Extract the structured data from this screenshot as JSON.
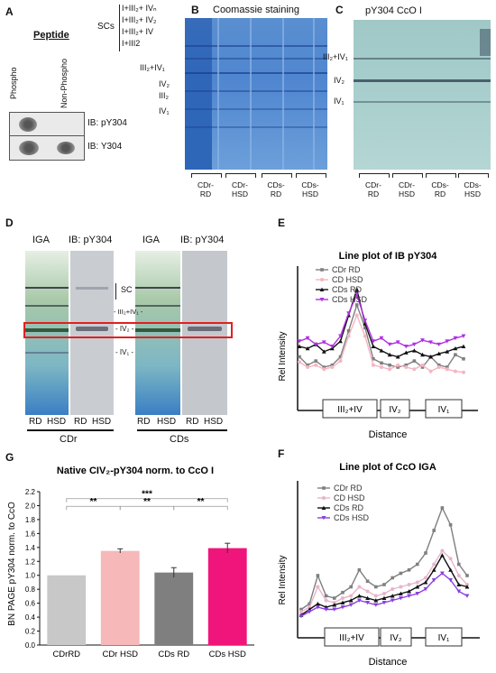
{
  "panels": {
    "a": {
      "letter": "A",
      "peptide_header": "Peptide",
      "col_labels": [
        "Phospho",
        "Non-Phospho"
      ],
      "blots": [
        "IB: pY304",
        "IB: Y304"
      ],
      "scs_label": "SCs",
      "complex_labels": [
        "I+III₂+ IVₙ",
        "I+III₂+ IV₂",
        "I+III₂+ IV",
        "I+III2"
      ]
    },
    "b": {
      "letter": "B",
      "title": "Coomassie staining",
      "band_labels": [
        "III₂+IV₁",
        "IV₂",
        "III₂",
        "IV₁"
      ],
      "lane_groups": [
        [
          "CDr-",
          "RD"
        ],
        [
          "CDr-",
          "HSD"
        ],
        [
          "CDs-",
          "RD"
        ],
        [
          "CDs-",
          "HSD"
        ]
      ]
    },
    "c": {
      "letter": "C",
      "title": "pY304 CcO I",
      "band_labels": [
        "III₂+IV₁",
        "IV₂",
        "IV₁"
      ],
      "lane_groups": [
        [
          "CDr-",
          "RD"
        ],
        [
          "CDr-",
          "HSD"
        ],
        [
          "CDs-",
          "RD"
        ],
        [
          "CDs-",
          "HSD"
        ]
      ]
    },
    "d": {
      "letter": "D",
      "headers": [
        "IGA",
        "IB: pY304",
        "IGA",
        "IB: pY304"
      ],
      "mid_labels": [
        "SC",
        "- III₂+IV₁ -",
        "- IV₂ -",
        "- IV₁ -"
      ],
      "lane_labels": [
        "RD",
        "HSD",
        "RD",
        "HSD",
        "RD",
        "HSD",
        "RD",
        "HSD"
      ],
      "groups": [
        "CDr",
        "CDs"
      ]
    },
    "e": {
      "letter": "E",
      "chart_data": {
        "type": "line",
        "title": "Line plot of IB pY304",
        "xlabel": "Distance",
        "ylabel": "Rel Intensity",
        "legend": "top-left",
        "region_labels": [
          "III₂+IV",
          "IV₂",
          "IV₁"
        ],
        "x": [
          0,
          1,
          2,
          3,
          4,
          5,
          6,
          7,
          8,
          9,
          10,
          11,
          12,
          13,
          14,
          15,
          16,
          17,
          18,
          19,
          20
        ],
        "series": [
          {
            "name": "CDr RD",
            "color": "#7f7f7f",
            "marker": "square",
            "values": [
              0.3,
              0.22,
              0.26,
              0.2,
              0.22,
              0.3,
              0.55,
              0.8,
              0.58,
              0.28,
              0.24,
              0.22,
              0.2,
              0.22,
              0.26,
              0.2,
              0.3,
              0.22,
              0.2,
              0.32,
              0.28
            ]
          },
          {
            "name": "CD HSD",
            "color": "#f4b6c2",
            "marker": "circle",
            "values": [
              0.25,
              0.2,
              0.22,
              0.18,
              0.2,
              0.26,
              0.5,
              0.7,
              0.5,
              0.22,
              0.2,
              0.18,
              0.22,
              0.2,
              0.18,
              0.22,
              0.16,
              0.2,
              0.18,
              0.16,
              0.15
            ]
          },
          {
            "name": "CDs RD",
            "color": "#111111",
            "marker": "triangle",
            "values": [
              0.4,
              0.38,
              0.42,
              0.35,
              0.38,
              0.45,
              0.7,
              0.95,
              0.62,
              0.4,
              0.36,
              0.32,
              0.3,
              0.34,
              0.36,
              0.32,
              0.3,
              0.33,
              0.35,
              0.38,
              0.4
            ]
          },
          {
            "name": "CDs HSD",
            "color": "#b030e0",
            "marker": "triangle-down",
            "values": [
              0.45,
              0.48,
              0.42,
              0.44,
              0.4,
              0.5,
              0.72,
              0.9,
              0.65,
              0.45,
              0.48,
              0.42,
              0.44,
              0.4,
              0.42,
              0.46,
              0.44,
              0.42,
              0.45,
              0.48,
              0.5
            ]
          }
        ]
      }
    },
    "f": {
      "letter": "F",
      "chart_data": {
        "type": "line",
        "title": "Line plot of CcO IGA",
        "xlabel": "Distance",
        "ylabel": "Rel Intensity",
        "legend": "top-left",
        "region_labels": [
          "III₂+IV",
          "IV₂",
          "IV₁"
        ],
        "x": [
          0,
          1,
          2,
          3,
          4,
          5,
          6,
          7,
          8,
          9,
          10,
          11,
          12,
          13,
          14,
          15,
          16,
          17,
          18,
          19,
          20
        ],
        "series": [
          {
            "name": "CDr RD",
            "color": "#7f7f7f",
            "marker": "square",
            "values": [
              0.1,
              0.15,
              0.4,
              0.22,
              0.2,
              0.25,
              0.3,
              0.45,
              0.35,
              0.3,
              0.32,
              0.38,
              0.42,
              0.45,
              0.5,
              0.6,
              0.8,
              1.0,
              0.85,
              0.5,
              0.4
            ]
          },
          {
            "name": "CD HSD",
            "color": "#e8b4cc",
            "marker": "circle",
            "values": [
              0.08,
              0.12,
              0.3,
              0.18,
              0.16,
              0.2,
              0.22,
              0.3,
              0.26,
              0.22,
              0.24,
              0.28,
              0.3,
              0.32,
              0.34,
              0.38,
              0.5,
              0.62,
              0.55,
              0.4,
              0.32
            ]
          },
          {
            "name": "CDs RD",
            "color": "#111111",
            "marker": "triangle",
            "values": [
              0.05,
              0.1,
              0.15,
              0.12,
              0.14,
              0.16,
              0.18,
              0.22,
              0.2,
              0.18,
              0.2,
              0.22,
              0.24,
              0.26,
              0.3,
              0.34,
              0.45,
              0.58,
              0.45,
              0.32,
              0.3
            ]
          },
          {
            "name": "CDs HSD",
            "color": "#8a40e0",
            "marker": "triangle-down",
            "values": [
              0.04,
              0.08,
              0.12,
              0.1,
              0.1,
              0.12,
              0.14,
              0.18,
              0.16,
              0.14,
              0.16,
              0.18,
              0.2,
              0.22,
              0.24,
              0.28,
              0.36,
              0.42,
              0.36,
              0.26,
              0.22
            ]
          }
        ]
      }
    },
    "g": {
      "letter": "G",
      "chart_data": {
        "type": "bar",
        "title": "Native CIV₂-pY304 norm. to CcO I",
        "ylabel": "BN PAGE pY304 norm. to CcO",
        "categories": [
          "CDrRD",
          "CDr HSD",
          "CDs RD",
          "CDs HSD"
        ],
        "values": [
          1.0,
          1.35,
          1.04,
          1.39
        ],
        "errors": [
          0.0,
          0.03,
          0.07,
          0.07
        ],
        "colors": [
          "#c8c8c8",
          "#f6b8b8",
          "#7f7f7f",
          "#f0157a"
        ],
        "ylim": [
          0,
          2.2
        ],
        "yticks": [
          "0.0",
          "0.2",
          "0.4",
          "0.6",
          "0.8",
          "1.0",
          "1.2",
          "1.4",
          "1.6",
          "1.8",
          "2.0",
          "2.2"
        ],
        "significance": [
          {
            "from": 0,
            "to": 3,
            "label": "***"
          },
          {
            "from": 0,
            "to": 1,
            "label": "**"
          },
          {
            "from": 1,
            "to": 2,
            "label": "**"
          },
          {
            "from": 2,
            "to": 3,
            "label": "**"
          }
        ]
      }
    }
  }
}
